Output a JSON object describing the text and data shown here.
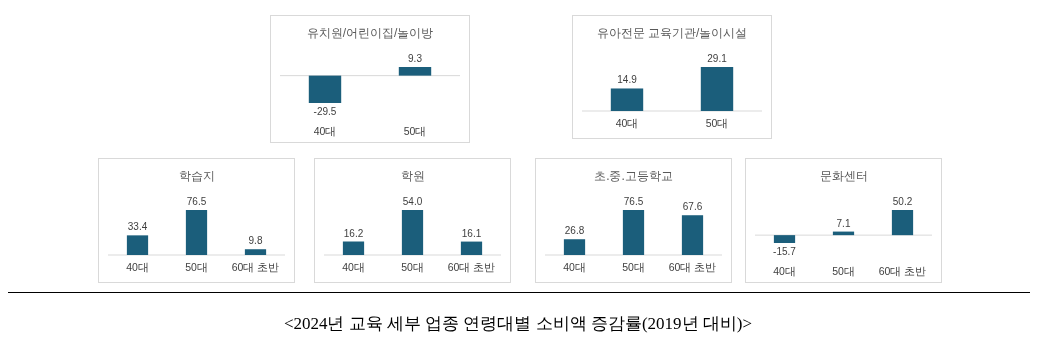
{
  "chart_data": [
    {
      "type": "bar",
      "title": "유치원/어린이집/놀이방",
      "categories": [
        "40대",
        "50대"
      ],
      "values": [
        -29.5,
        9.3
      ],
      "value_labels": [
        "-29.5",
        "9.3"
      ],
      "color": "#1b5e7b"
    },
    {
      "type": "bar",
      "title": "유아전문 교육기관/놀이시설",
      "categories": [
        "40대",
        "50대"
      ],
      "values": [
        14.9,
        29.1
      ],
      "value_labels": [
        "14.9",
        "29.1"
      ],
      "color": "#1b5e7b"
    },
    {
      "type": "bar",
      "title": "학습지",
      "categories": [
        "40대",
        "50대",
        "60대 초반"
      ],
      "values": [
        33.4,
        76.5,
        9.8
      ],
      "value_labels": [
        "33.4",
        "76.5",
        "9.8"
      ],
      "color": "#1b5e7b"
    },
    {
      "type": "bar",
      "title": "학원",
      "categories": [
        "40대",
        "50대",
        "60대 초반"
      ],
      "values": [
        16.2,
        54,
        16.1
      ],
      "value_labels": [
        "16.2",
        "54.0",
        "16.1"
      ],
      "color": "#1b5e7b"
    },
    {
      "type": "bar",
      "title": "초.중.고등학교",
      "categories": [
        "40대",
        "50대",
        "60대 초반"
      ],
      "values": [
        26.8,
        76.5,
        67.6
      ],
      "value_labels": [
        "26.8",
        "76.5",
        "67.6"
      ],
      "color": "#1b5e7b"
    },
    {
      "type": "bar",
      "title": "문화센터",
      "categories": [
        "40대",
        "50대",
        "60대 초반"
      ],
      "values": [
        -15.7,
        7.1,
        50.2
      ],
      "value_labels": [
        "-15.7",
        "7.1",
        "50.2"
      ],
      "color": "#1b5e7b",
      "annotations": [
        "<2024년 교육 세부 업종 연령대별 소비액 증감률(2019년 대비)>"
      ]
    }
  ]
}
